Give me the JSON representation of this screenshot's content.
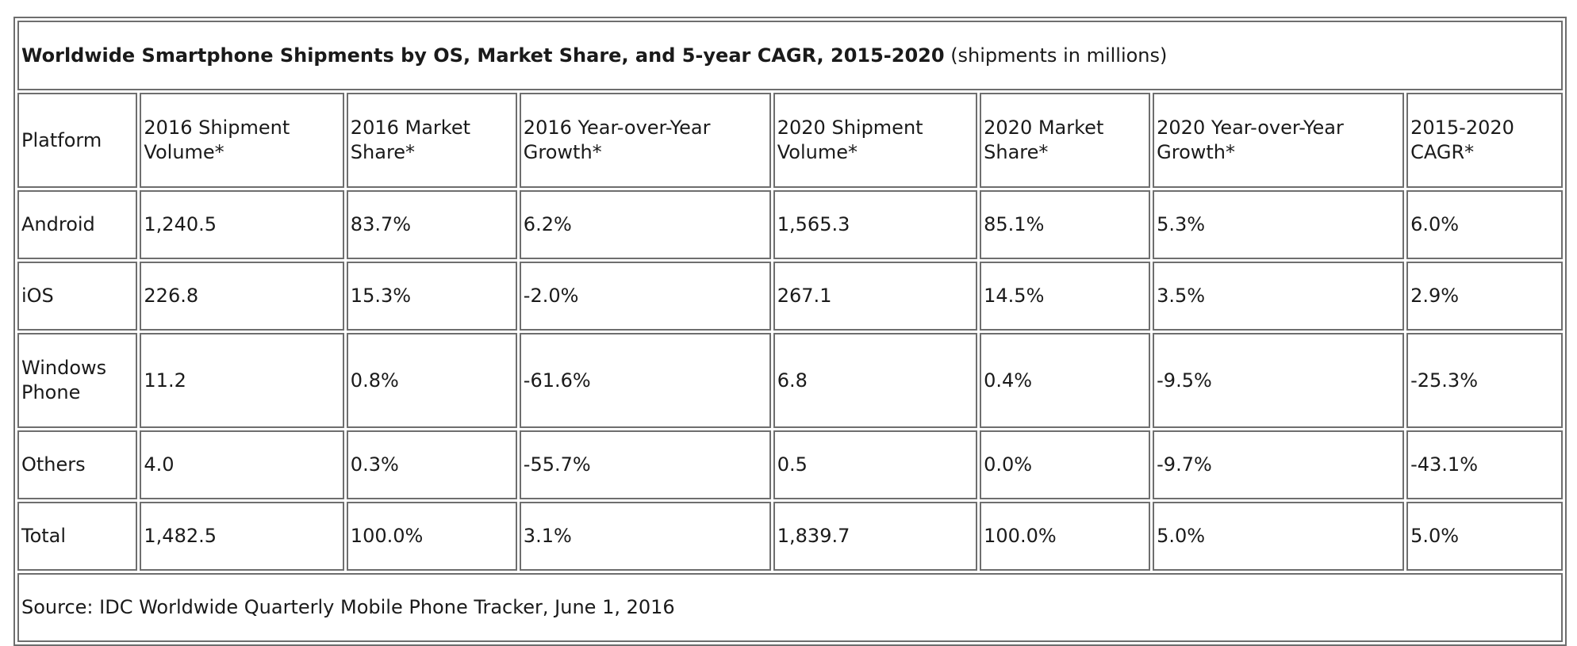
{
  "title": {
    "bold": "Worldwide Smartphone Shipments by OS, Market Share, and 5-year CAGR, 2015-2020",
    "normal": "(shipments in millions)"
  },
  "columns": [
    [
      "Platform"
    ],
    [
      "2016 Shipment",
      "Volume*"
    ],
    [
      "2016 Market",
      "Share*"
    ],
    [
      "2016 Year-over-Year",
      "Growth*"
    ],
    [
      "2020 Shipment",
      "Volume*"
    ],
    [
      "2020 Market",
      "Share*"
    ],
    [
      "2020 Year-over-Year",
      "Growth*"
    ],
    [
      "2015-2020",
      "CAGR*"
    ]
  ],
  "rows": [
    {
      "platform": [
        "Android"
      ],
      "values": [
        "1,240.5",
        "83.7%",
        "6.2%",
        "1,565.3",
        "85.1%",
        "5.3%",
        "6.0%"
      ]
    },
    {
      "platform": [
        "iOS"
      ],
      "values": [
        "226.8",
        "15.3%",
        "-2.0%",
        "267.1",
        "14.5%",
        "3.5%",
        "2.9%"
      ]
    },
    {
      "platform": [
        "Windows",
        "Phone"
      ],
      "values": [
        "11.2",
        "0.8%",
        "-61.6%",
        "6.8",
        "0.4%",
        "-9.5%",
        "-25.3%"
      ]
    },
    {
      "platform": [
        "Others"
      ],
      "values": [
        "4.0",
        "0.3%",
        "-55.7%",
        "0.5",
        "0.0%",
        "-9.7%",
        "-43.1%"
      ]
    }
  ],
  "total": {
    "platform": "Total",
    "values": [
      "1,482.5",
      "100.0%",
      "3.1%",
      "1,839.7",
      "100.0%",
      "5.0%",
      "5.0%"
    ]
  },
  "source": "Source: IDC Worldwide Quarterly Mobile Phone Tracker, June 1, 2016"
}
